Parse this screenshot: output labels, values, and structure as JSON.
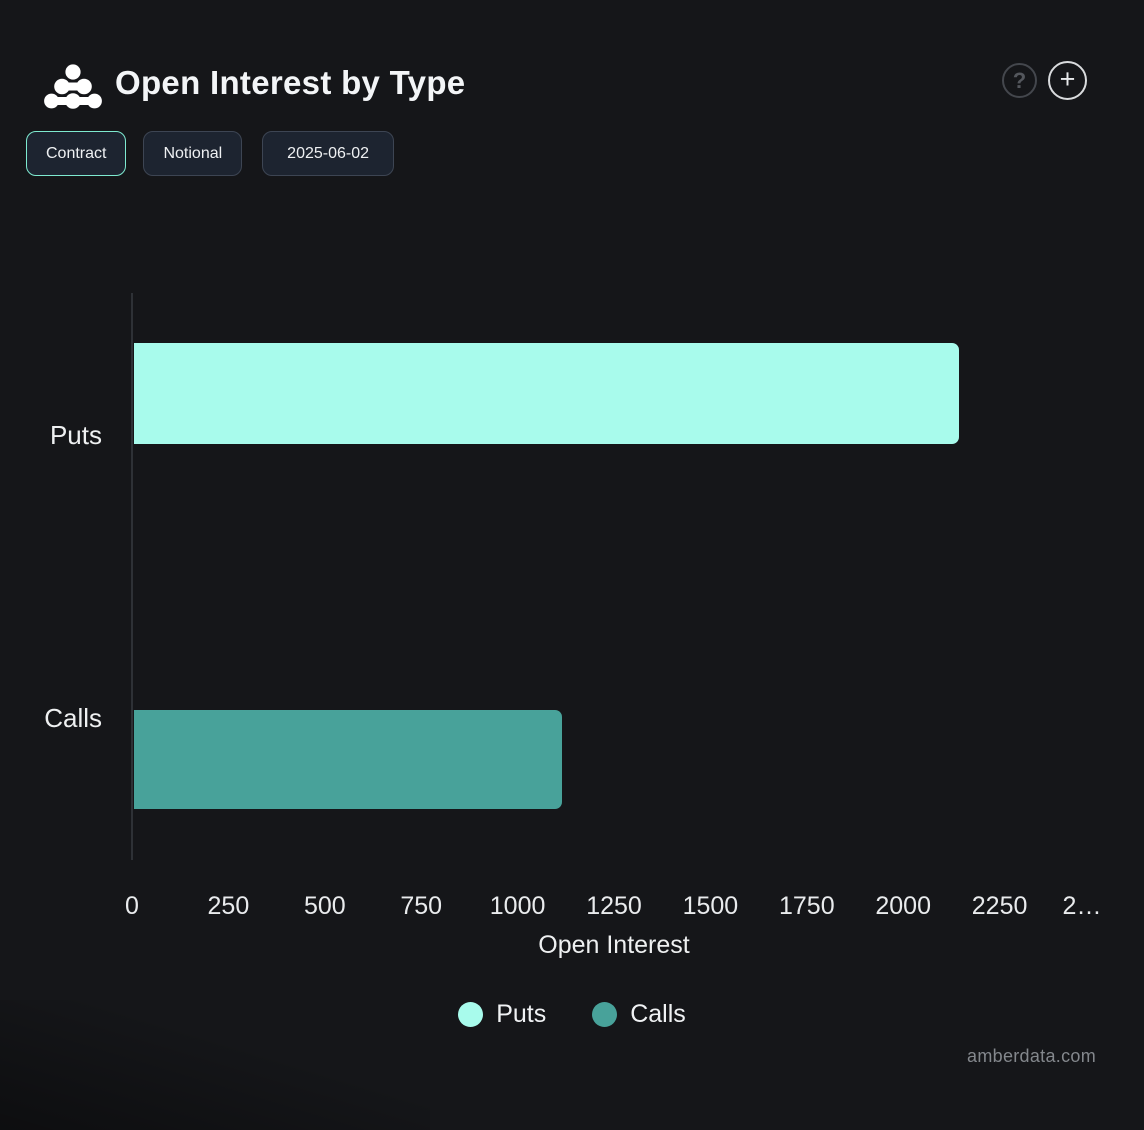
{
  "header": {
    "title": "Open Interest by Type",
    "help_icon": "?",
    "add_icon": "+"
  },
  "toolbar": {
    "contract_label": "Contract",
    "notional_label": "Notional",
    "date_label": "2025-06-02"
  },
  "chart_data": {
    "type": "bar",
    "orientation": "horizontal",
    "title": "Open Interest by Type",
    "categories": [
      "Puts",
      "Calls"
    ],
    "values": [
      2140,
      1110
    ],
    "colors": [
      "#a8fbec",
      "#48a29a"
    ],
    "xlabel": "Open Interest",
    "xlim": [
      0,
      2500
    ],
    "xticks": [
      0,
      250,
      500,
      750,
      1000,
      1250,
      1500,
      1750,
      2000,
      2250,
      2500
    ],
    "xtick_labels": [
      "0",
      "250",
      "500",
      "750",
      "1000",
      "1250",
      "1500",
      "1750",
      "2000",
      "2250",
      "2…"
    ],
    "grid": false,
    "legend_position": "bottom",
    "legend": [
      {
        "label": "Puts",
        "color": "#a8fbec"
      },
      {
        "label": "Calls",
        "color": "#48a29a"
      }
    ]
  },
  "footer": {
    "watermark": "amberdata.com"
  },
  "colors": {
    "background": "#151619",
    "accent_mint": "#7eead0",
    "button_bg": "#1d2430",
    "button_border": "#3d4553",
    "axis_line": "#2e3136",
    "muted_text": "#83878c"
  }
}
